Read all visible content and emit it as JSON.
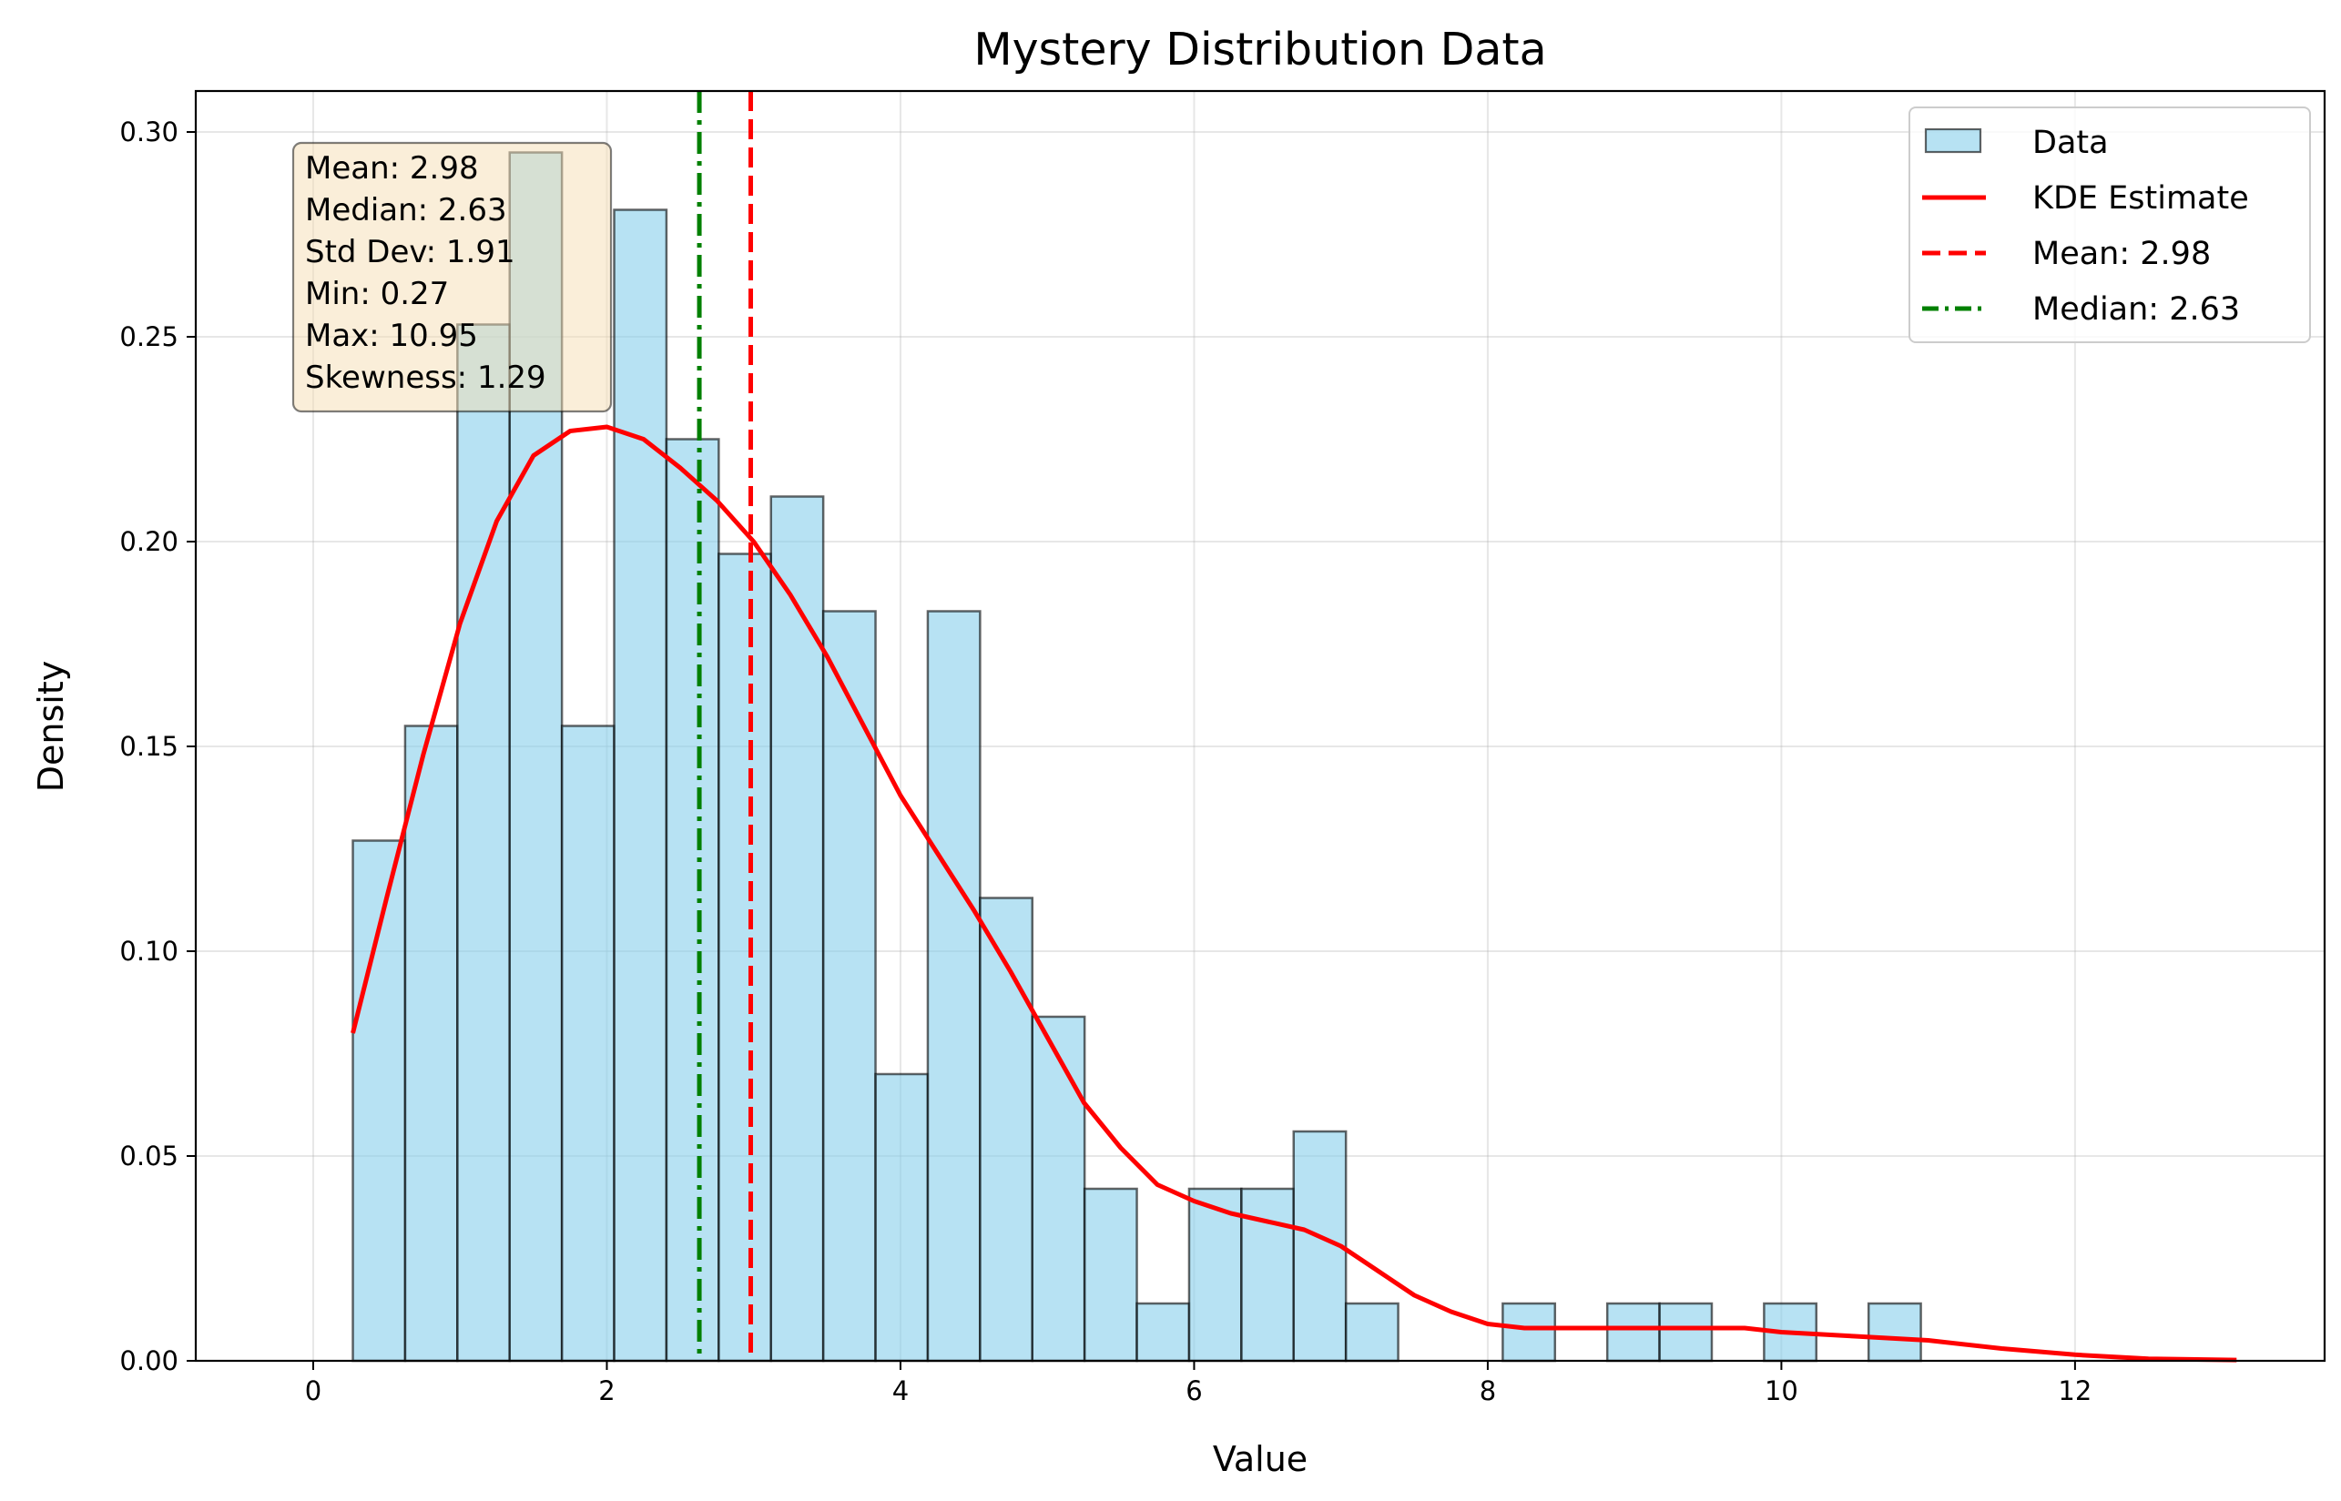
{
  "chart_data": {
    "type": "bar",
    "title": "Mystery Distribution Data",
    "xlabel": "Value",
    "ylabel": "Density",
    "xlim": [
      -0.8,
      13.7
    ],
    "ylim": [
      0,
      0.31
    ],
    "xticks": [
      0,
      2,
      4,
      6,
      8,
      10,
      12
    ],
    "yticks": [
      "0.00",
      "0.05",
      "0.10",
      "0.15",
      "0.20",
      "0.25",
      "0.30"
    ],
    "grid": true,
    "legend_position": "top-right",
    "colors": {
      "bar_fill": "#87ceeb",
      "bar_edge": "#000000",
      "kde": "#ff0000",
      "mean_line": "#ff0000",
      "median_line": "#008000"
    },
    "histogram": {
      "name": "Data",
      "bin_start": 0.27,
      "bin_width": 0.356,
      "values": [
        0.127,
        0.155,
        0.253,
        0.295,
        0.155,
        0.281,
        0.225,
        0.197,
        0.211,
        0.183,
        0.07,
        0.183,
        0.113,
        0.084,
        0.042,
        0.014,
        0.042,
        0.042,
        0.056,
        0.014,
        0,
        0,
        0.014,
        0,
        0.014,
        0.014,
        0,
        0.014,
        0,
        0.014
      ]
    },
    "kde": {
      "name": "KDE Estimate",
      "x": [
        0.27,
        0.5,
        0.75,
        1.0,
        1.25,
        1.5,
        1.75,
        2.0,
        2.25,
        2.5,
        2.75,
        3.0,
        3.25,
        3.5,
        3.75,
        4.0,
        4.25,
        4.5,
        4.75,
        5.0,
        5.25,
        5.5,
        5.75,
        6.0,
        6.25,
        6.5,
        6.75,
        7.0,
        7.25,
        7.5,
        7.75,
        8.0,
        8.25,
        8.5,
        8.75,
        9.0,
        9.25,
        9.5,
        9.75,
        10.0,
        10.5,
        11.0,
        11.5,
        12.0,
        12.5,
        13.1
      ],
      "y": [
        0.08,
        0.113,
        0.148,
        0.18,
        0.205,
        0.221,
        0.227,
        0.228,
        0.225,
        0.218,
        0.21,
        0.2,
        0.187,
        0.172,
        0.155,
        0.138,
        0.124,
        0.11,
        0.095,
        0.079,
        0.063,
        0.052,
        0.043,
        0.039,
        0.036,
        0.034,
        0.032,
        0.028,
        0.022,
        0.016,
        0.012,
        0.009,
        0.008,
        0.008,
        0.008,
        0.008,
        0.008,
        0.008,
        0.008,
        0.007,
        0.006,
        0.005,
        0.003,
        0.0015,
        0.0005,
        0.0002
      ]
    },
    "mean": {
      "value": 2.98,
      "label": "Mean: 2.98"
    },
    "median": {
      "value": 2.63,
      "label": "Median: 2.63"
    },
    "stats_box": [
      "Mean: 2.98",
      "Median: 2.63",
      "Std Dev: 1.91",
      "Min: 0.27",
      "Max: 10.95",
      "Skewness: 1.29"
    ],
    "legend": [
      "Data",
      "KDE Estimate",
      "Mean: 2.98",
      "Median: 2.63"
    ]
  }
}
